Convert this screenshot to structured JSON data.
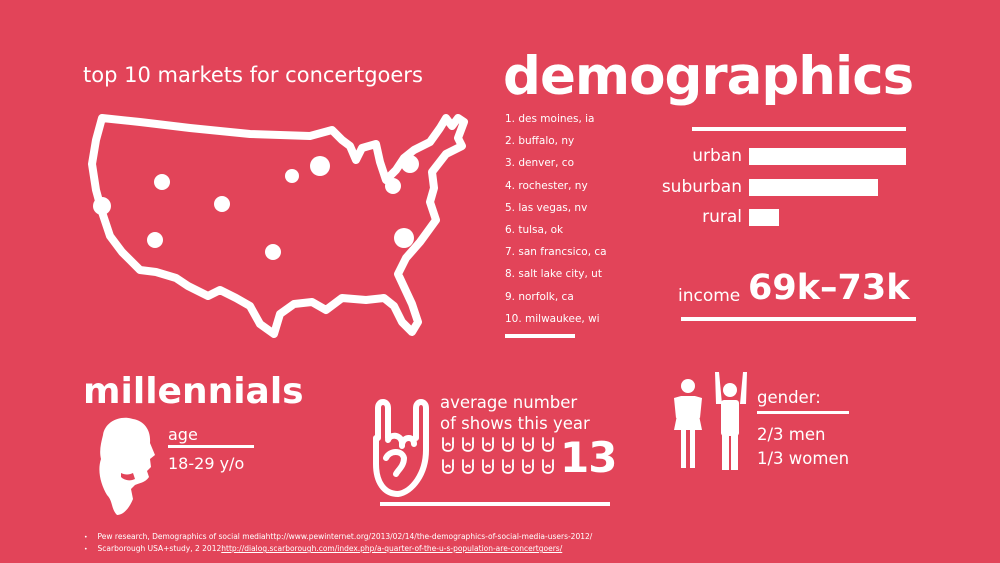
{
  "map_section": {
    "title": "top 10 markets for concertgoers",
    "markets": [
      "1. des moines, ia",
      "2. buffalo, ny",
      "3. denver, co",
      "4. rochester, ny",
      "5. las vegas, nv",
      "6. tulsa, ok",
      "7. san francsico, ca",
      "8. salt lake city, ut",
      "9. norfolk, ca",
      "10. milwaukee, wi"
    ]
  },
  "demographics": {
    "title": "demographics",
    "areas": [
      {
        "label": "urban",
        "value": 1.0
      },
      {
        "label": "suburban",
        "value": 0.82
      },
      {
        "label": "rural",
        "value": 0.19
      }
    ],
    "income_label": "income",
    "income_value": "69k–73k"
  },
  "millennials": {
    "title": "millennials",
    "age_label": "age",
    "age_value": "18-29 y/o"
  },
  "shows": {
    "title_line1": "average number",
    "title_line2": "of shows this year",
    "value": "13",
    "icon_count": 12
  },
  "gender": {
    "title": "gender:",
    "men": "2/3 men",
    "women": "1/3 women"
  },
  "sources": [
    {
      "text": "Pew research, Demographics of social mediahttp://www.pewinternet.org/2013/02/14/the-demographics-of-social-media-users-2012/"
    },
    {
      "prefix": "Scarborough USA+study, 2 2012",
      "link": "http://dialog.scarborough.com/index.php/a-quarter-of-the-u-s-population-are-concertgoers/"
    }
  ],
  "colors": {
    "background": "#e24459",
    "foreground": "#ffffff"
  }
}
